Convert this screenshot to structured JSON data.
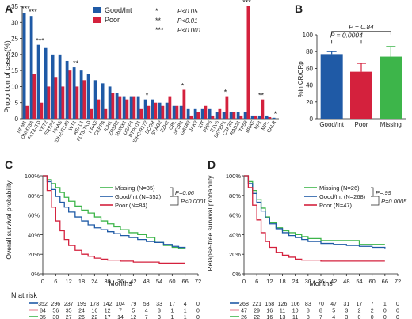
{
  "panels": {
    "A": "A",
    "B": "B",
    "C": "C",
    "D": "D"
  },
  "colors": {
    "good": "#1f5aa6",
    "poor": "#d4213d",
    "missing": "#3db54a",
    "text": "#222222"
  },
  "chart_data": [
    {
      "id": "A",
      "type": "bar",
      "ylabel": "Proportion of cases(%)",
      "ylim": [
        0,
        35
      ],
      "yticks": [
        0,
        5,
        10,
        15,
        20,
        25,
        30,
        35
      ],
      "legend": [
        "Good/Int",
        "Poor"
      ],
      "sig_legend": [
        {
          "stars": "*",
          "text": "P<0.05"
        },
        {
          "stars": "**",
          "text": "P<0.01"
        },
        {
          "stars": "***",
          "text": "P<0.001"
        }
      ],
      "categories": [
        "NPM1",
        "DNMT3A",
        "FLT3-ITD",
        "TET2",
        "SRSF2",
        "NRAS",
        "IDH2-R140",
        "WT1",
        "ASXL1",
        "FLT3-TKD",
        "KRAS",
        "CEBPA",
        "IDH1",
        "ZRSR2",
        "RUNX1",
        "U2AF1",
        "PTPN11",
        "IDH2-R172",
        "BCOR",
        "STAG2",
        "EZH2",
        "CBL",
        "SF3B1",
        "GATA2",
        "JAK2",
        "KIT",
        "PHF6",
        "ETV6",
        "SETBP1",
        "CSF3R",
        "RAD21",
        "TP53",
        "BRAF",
        "NF1",
        "MPL",
        "CALR"
      ],
      "series": [
        {
          "name": "Good/Int",
          "values": [
            33,
            32,
            23,
            22,
            20,
            20,
            18,
            16,
            15,
            14,
            12,
            11,
            10,
            8,
            7,
            7,
            7,
            6,
            6,
            5,
            5,
            4,
            4,
            3,
            3,
            3,
            3,
            2,
            2,
            2,
            2,
            2,
            1,
            1,
            1,
            0.3
          ]
        },
        {
          "name": "Poor",
          "values": [
            4,
            14,
            5,
            10,
            13,
            10,
            15,
            10,
            12,
            3,
            6,
            3,
            8,
            7,
            6,
            7,
            3,
            4,
            5,
            4,
            7,
            4,
            9,
            1,
            2,
            4,
            1,
            3,
            7,
            2,
            1,
            35,
            1,
            6,
            0.5,
            0
          ]
        }
      ],
      "annotations": [
        {
          "category": "NPM1",
          "stars": "***"
        },
        {
          "category": "DNMT3A",
          "stars": "***"
        },
        {
          "category": "FLT3-ITD",
          "stars": "***"
        },
        {
          "category": "WT1",
          "stars": "**"
        },
        {
          "category": "IDH2-R172",
          "stars": "*"
        },
        {
          "category": "SF3B1",
          "stars": "*"
        },
        {
          "category": "SETBP1",
          "stars": "*"
        },
        {
          "category": "TP53",
          "stars": "***"
        },
        {
          "category": "NF1",
          "stars": "**"
        },
        {
          "category": "CALR",
          "stars": "*"
        }
      ]
    },
    {
      "id": "B",
      "type": "bar",
      "ylabel": "%in CR/CRp",
      "ylim": [
        0,
        100
      ],
      "yticks": [
        0,
        20,
        40,
        60,
        80,
        100
      ],
      "categories": [
        "Good/Int",
        "Poor",
        "Missing"
      ],
      "values": [
        77,
        56,
        74
      ],
      "errors": [
        3,
        10,
        12
      ],
      "brackets": [
        {
          "from": 0,
          "to": 1,
          "text": "P = 0.0004"
        },
        {
          "from": 0,
          "to": 2,
          "text": "P = 0.84"
        }
      ]
    },
    {
      "id": "C",
      "type": "line",
      "ylabel": "Overall survival probability",
      "xlabel": "Months",
      "xlim": [
        0,
        72
      ],
      "xticks": [
        0,
        6,
        12,
        18,
        24,
        30,
        36,
        42,
        48,
        54,
        60,
        66,
        72
      ],
      "ylim": [
        0,
        100
      ],
      "yticks": [
        "0%",
        "20%",
        "40%",
        "60%",
        "80%",
        "100%"
      ],
      "series": [
        {
          "name": "Missing (N=35)",
          "x": [
            0,
            2,
            4,
            6,
            8,
            10,
            12,
            15,
            18,
            21,
            24,
            27,
            30,
            33,
            36,
            40,
            44,
            48,
            52,
            56,
            60,
            63,
            66
          ],
          "y": [
            100,
            96,
            92,
            88,
            83,
            78,
            74,
            69,
            65,
            62,
            58,
            54,
            51,
            48,
            45,
            42,
            40,
            37,
            32,
            29,
            27,
            26,
            26
          ]
        },
        {
          "name": "Good/Int (N=352)",
          "x": [
            0,
            2,
            4,
            6,
            8,
            10,
            12,
            15,
            18,
            21,
            24,
            27,
            30,
            33,
            36,
            40,
            44,
            48,
            52,
            56,
            60,
            63,
            66
          ],
          "y": [
            100,
            94,
            86,
            79,
            73,
            68,
            63,
            58,
            54,
            50,
            47,
            45,
            43,
            41,
            39,
            37,
            35,
            33,
            32,
            30,
            28,
            27,
            26
          ]
        },
        {
          "name": "Poor (N=84)",
          "x": [
            0,
            2,
            4,
            6,
            8,
            10,
            12,
            15,
            18,
            21,
            24,
            27,
            30,
            36,
            42,
            48,
            54,
            60,
            66
          ],
          "y": [
            100,
            85,
            68,
            54,
            44,
            35,
            29,
            24,
            20,
            18,
            16,
            15,
            14,
            13,
            12,
            12,
            11,
            11,
            11
          ]
        }
      ],
      "pvalues": [
        "P=0.06",
        "P<0.0001"
      ],
      "risk_label": "N at risk",
      "risk_rows": [
        [
          352,
          296,
          237,
          199,
          178,
          142,
          104,
          79,
          53,
          33,
          17,
          4,
          0
        ],
        [
          84,
          56,
          35,
          24,
          16,
          12,
          7,
          5,
          4,
          3,
          1,
          1,
          0
        ],
        [
          35,
          30,
          27,
          26,
          22,
          17,
          14,
          12,
          7,
          3,
          1,
          1,
          0
        ]
      ]
    },
    {
      "id": "D",
      "type": "line",
      "ylabel": "Relapse-free survival probability",
      "xlabel": "Months",
      "xlim": [
        0,
        72
      ],
      "xticks": [
        0,
        6,
        12,
        18,
        24,
        30,
        36,
        42,
        48,
        54,
        60,
        66,
        72
      ],
      "ylim": [
        0,
        100
      ],
      "yticks": [
        "0%",
        "20%",
        "40%",
        "60%",
        "80%",
        "100%"
      ],
      "series": [
        {
          "name": "Missing (N=26)",
          "x": [
            0,
            2,
            4,
            6,
            8,
            10,
            12,
            15,
            18,
            21,
            24,
            27,
            30,
            36,
            42,
            48,
            54,
            60,
            66
          ],
          "y": [
            100,
            94,
            85,
            76,
            67,
            58,
            52,
            47,
            44,
            42,
            40,
            38,
            36,
            34,
            34,
            34,
            30,
            30,
            30
          ]
        },
        {
          "name": "Good/Int (N=268)",
          "x": [
            0,
            2,
            4,
            6,
            8,
            10,
            12,
            15,
            18,
            21,
            24,
            27,
            30,
            36,
            42,
            48,
            54,
            60,
            66
          ],
          "y": [
            100,
            92,
            82,
            73,
            64,
            57,
            51,
            46,
            42,
            39,
            37,
            35,
            33,
            31,
            30,
            29,
            28,
            27,
            26
          ]
        },
        {
          "name": "Poor (N=47)",
          "x": [
            0,
            2,
            4,
            6,
            8,
            10,
            12,
            15,
            18,
            21,
            24,
            27,
            30,
            36,
            42,
            48,
            54,
            60,
            66
          ],
          "y": [
            100,
            88,
            70,
            55,
            42,
            33,
            27,
            22,
            19,
            17,
            15,
            14,
            14,
            13,
            13,
            13,
            13,
            13,
            13
          ]
        }
      ],
      "pvalues": [
        "P=.99",
        "P=0.0005"
      ],
      "risk_rows": [
        [
          268,
          221,
          158,
          126,
          106,
          83,
          70,
          47,
          31,
          17,
          7,
          1,
          0
        ],
        [
          47,
          29,
          16,
          11,
          10,
          8,
          8,
          5,
          3,
          2,
          2,
          0,
          0
        ],
        [
          26,
          22,
          16,
          13,
          11,
          8,
          7,
          4,
          3,
          0,
          0,
          0,
          0
        ]
      ]
    }
  ]
}
